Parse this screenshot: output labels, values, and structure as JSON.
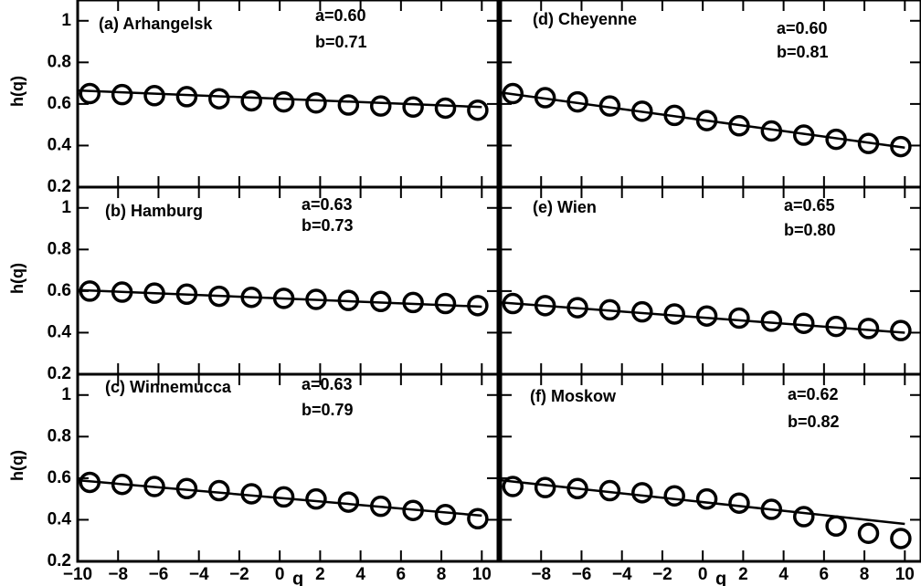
{
  "chart_data": [
    {
      "type": "scatter",
      "label": "(a) Arhangelsk",
      "annotations": [
        "a=0.60",
        "b=0.71"
      ],
      "ylabel": "h(q)",
      "x": [
        -9.4,
        -7.8,
        -6.2,
        -4.6,
        -3.0,
        -1.4,
        0.2,
        1.8,
        3.4,
        5.0,
        6.6,
        8.2,
        9.8
      ],
      "values": [
        0.65,
        0.645,
        0.64,
        0.635,
        0.625,
        0.615,
        0.61,
        0.605,
        0.595,
        0.59,
        0.585,
        0.58,
        0.57
      ],
      "fit": {
        "x": [
          -10,
          10
        ],
        "values": [
          0.665,
          0.585
        ]
      },
      "xlim": [
        -10,
        10.8
      ],
      "ylim": [
        0.2,
        1.1
      ],
      "xticks": [
        -10,
        -8,
        -6,
        -4,
        -2,
        0,
        2,
        4,
        6,
        8,
        10
      ],
      "yticks": [
        0.2,
        0.4,
        0.6,
        0.8,
        1
      ]
    },
    {
      "type": "scatter",
      "label": "(b) Hamburg",
      "annotations": [
        "a=0.63",
        "b=0.73"
      ],
      "ylabel": "h(q)",
      "x": [
        -9.4,
        -7.8,
        -6.2,
        -4.6,
        -3.0,
        -1.4,
        0.2,
        1.8,
        3.4,
        5.0,
        6.6,
        8.2,
        9.8
      ],
      "values": [
        0.6,
        0.595,
        0.59,
        0.585,
        0.575,
        0.57,
        0.565,
        0.56,
        0.555,
        0.55,
        0.545,
        0.54,
        0.53
      ],
      "fit": {
        "x": [
          -10,
          10
        ],
        "values": [
          0.605,
          0.525
        ]
      },
      "xlim": [
        -10,
        10.8
      ],
      "ylim": [
        0.2,
        1.1
      ],
      "xticks": [
        -10,
        -8,
        -6,
        -4,
        -2,
        0,
        2,
        4,
        6,
        8,
        10
      ],
      "yticks": [
        0.2,
        0.4,
        0.6,
        0.8,
        1
      ]
    },
    {
      "type": "scatter",
      "label": "(c) Winnemucca",
      "annotations": [
        "a=0.63",
        "b=0.79"
      ],
      "ylabel": "h(q)",
      "xlabel": "q",
      "x": [
        -9.4,
        -7.8,
        -6.2,
        -4.6,
        -3.0,
        -1.4,
        0.2,
        1.8,
        3.4,
        5.0,
        6.6,
        8.2,
        9.8
      ],
      "values": [
        0.58,
        0.57,
        0.56,
        0.55,
        0.54,
        0.525,
        0.51,
        0.5,
        0.485,
        0.465,
        0.445,
        0.425,
        0.405
      ],
      "fit": {
        "x": [
          -10,
          10
        ],
        "values": [
          0.59,
          0.42
        ]
      },
      "xlim": [
        -10,
        10.8
      ],
      "ylim": [
        0.2,
        1.1
      ],
      "xticks": [
        {
          "value": -10,
          "label": "−10"
        },
        {
          "value": -8,
          "label": "−8"
        },
        {
          "value": -6,
          "label": "−6"
        },
        {
          "value": -4,
          "label": "−4"
        },
        {
          "value": -2,
          "label": "−2"
        },
        0,
        2,
        4,
        6,
        8,
        10
      ],
      "yticks": [
        0.2,
        0.4,
        0.6,
        0.8,
        1
      ]
    },
    {
      "type": "scatter",
      "label": "(d) Cheyenne",
      "annotations": [
        "a=0.60",
        "b=0.81"
      ],
      "x": [
        -9.4,
        -7.8,
        -6.2,
        -4.6,
        -3.0,
        -1.4,
        0.2,
        1.8,
        3.4,
        5.0,
        6.6,
        8.2,
        9.8
      ],
      "values": [
        0.65,
        0.63,
        0.61,
        0.59,
        0.565,
        0.545,
        0.52,
        0.495,
        0.47,
        0.45,
        0.43,
        0.41,
        0.395
      ],
      "fit": {
        "x": [
          -10,
          10
        ],
        "values": [
          0.655,
          0.39
        ]
      },
      "xlim": [
        -10,
        10.8
      ],
      "ylim": [
        0.2,
        1.1
      ],
      "xticks": [
        -10,
        -8,
        -6,
        -4,
        -2,
        0,
        2,
        4,
        6,
        8,
        10
      ],
      "yticks": [
        0.2,
        0.4,
        0.6,
        0.8,
        1
      ]
    },
    {
      "type": "scatter",
      "label": "(e) Wien",
      "annotations": [
        "a=0.65",
        "b=0.80"
      ],
      "x": [
        -9.4,
        -7.8,
        -6.2,
        -4.6,
        -3.0,
        -1.4,
        0.2,
        1.8,
        3.4,
        5.0,
        6.6,
        8.2,
        9.8
      ],
      "values": [
        0.54,
        0.53,
        0.52,
        0.51,
        0.5,
        0.49,
        0.48,
        0.47,
        0.455,
        0.445,
        0.43,
        0.42,
        0.41
      ],
      "fit": {
        "x": [
          -10,
          10
        ],
        "values": [
          0.545,
          0.4
        ]
      },
      "xlim": [
        -10,
        10.8
      ],
      "ylim": [
        0.2,
        1.1
      ],
      "xticks": [
        -10,
        -8,
        -6,
        -4,
        -2,
        0,
        2,
        4,
        6,
        8,
        10
      ],
      "yticks": [
        0.2,
        0.4,
        0.6,
        0.8,
        1
      ]
    },
    {
      "type": "scatter",
      "label": "(f) Moskow",
      "annotations": [
        "a=0.62",
        "b=0.82"
      ],
      "xlabel": "q",
      "x": [
        -9.4,
        -7.8,
        -6.2,
        -4.6,
        -3.0,
        -1.4,
        0.2,
        1.8,
        3.4,
        5.0,
        6.6,
        8.2,
        9.8
      ],
      "values": [
        0.56,
        0.555,
        0.55,
        0.54,
        0.53,
        0.515,
        0.5,
        0.48,
        0.45,
        0.415,
        0.37,
        0.335,
        0.31
      ],
      "fit": {
        "x": [
          -10,
          10
        ],
        "values": [
          0.59,
          0.38
        ]
      },
      "xlim": [
        -10,
        10.8
      ],
      "ylim": [
        0.2,
        1.1
      ],
      "xticks": [
        {
          "value": -8,
          "label": "−8"
        },
        {
          "value": -6,
          "label": "−6"
        },
        {
          "value": -4,
          "label": "−4"
        },
        {
          "value": -2,
          "label": "−2"
        },
        0,
        2,
        4,
        6,
        8,
        10
      ],
      "yticks": [
        0.2,
        0.4,
        0.6,
        0.8,
        1
      ]
    }
  ]
}
